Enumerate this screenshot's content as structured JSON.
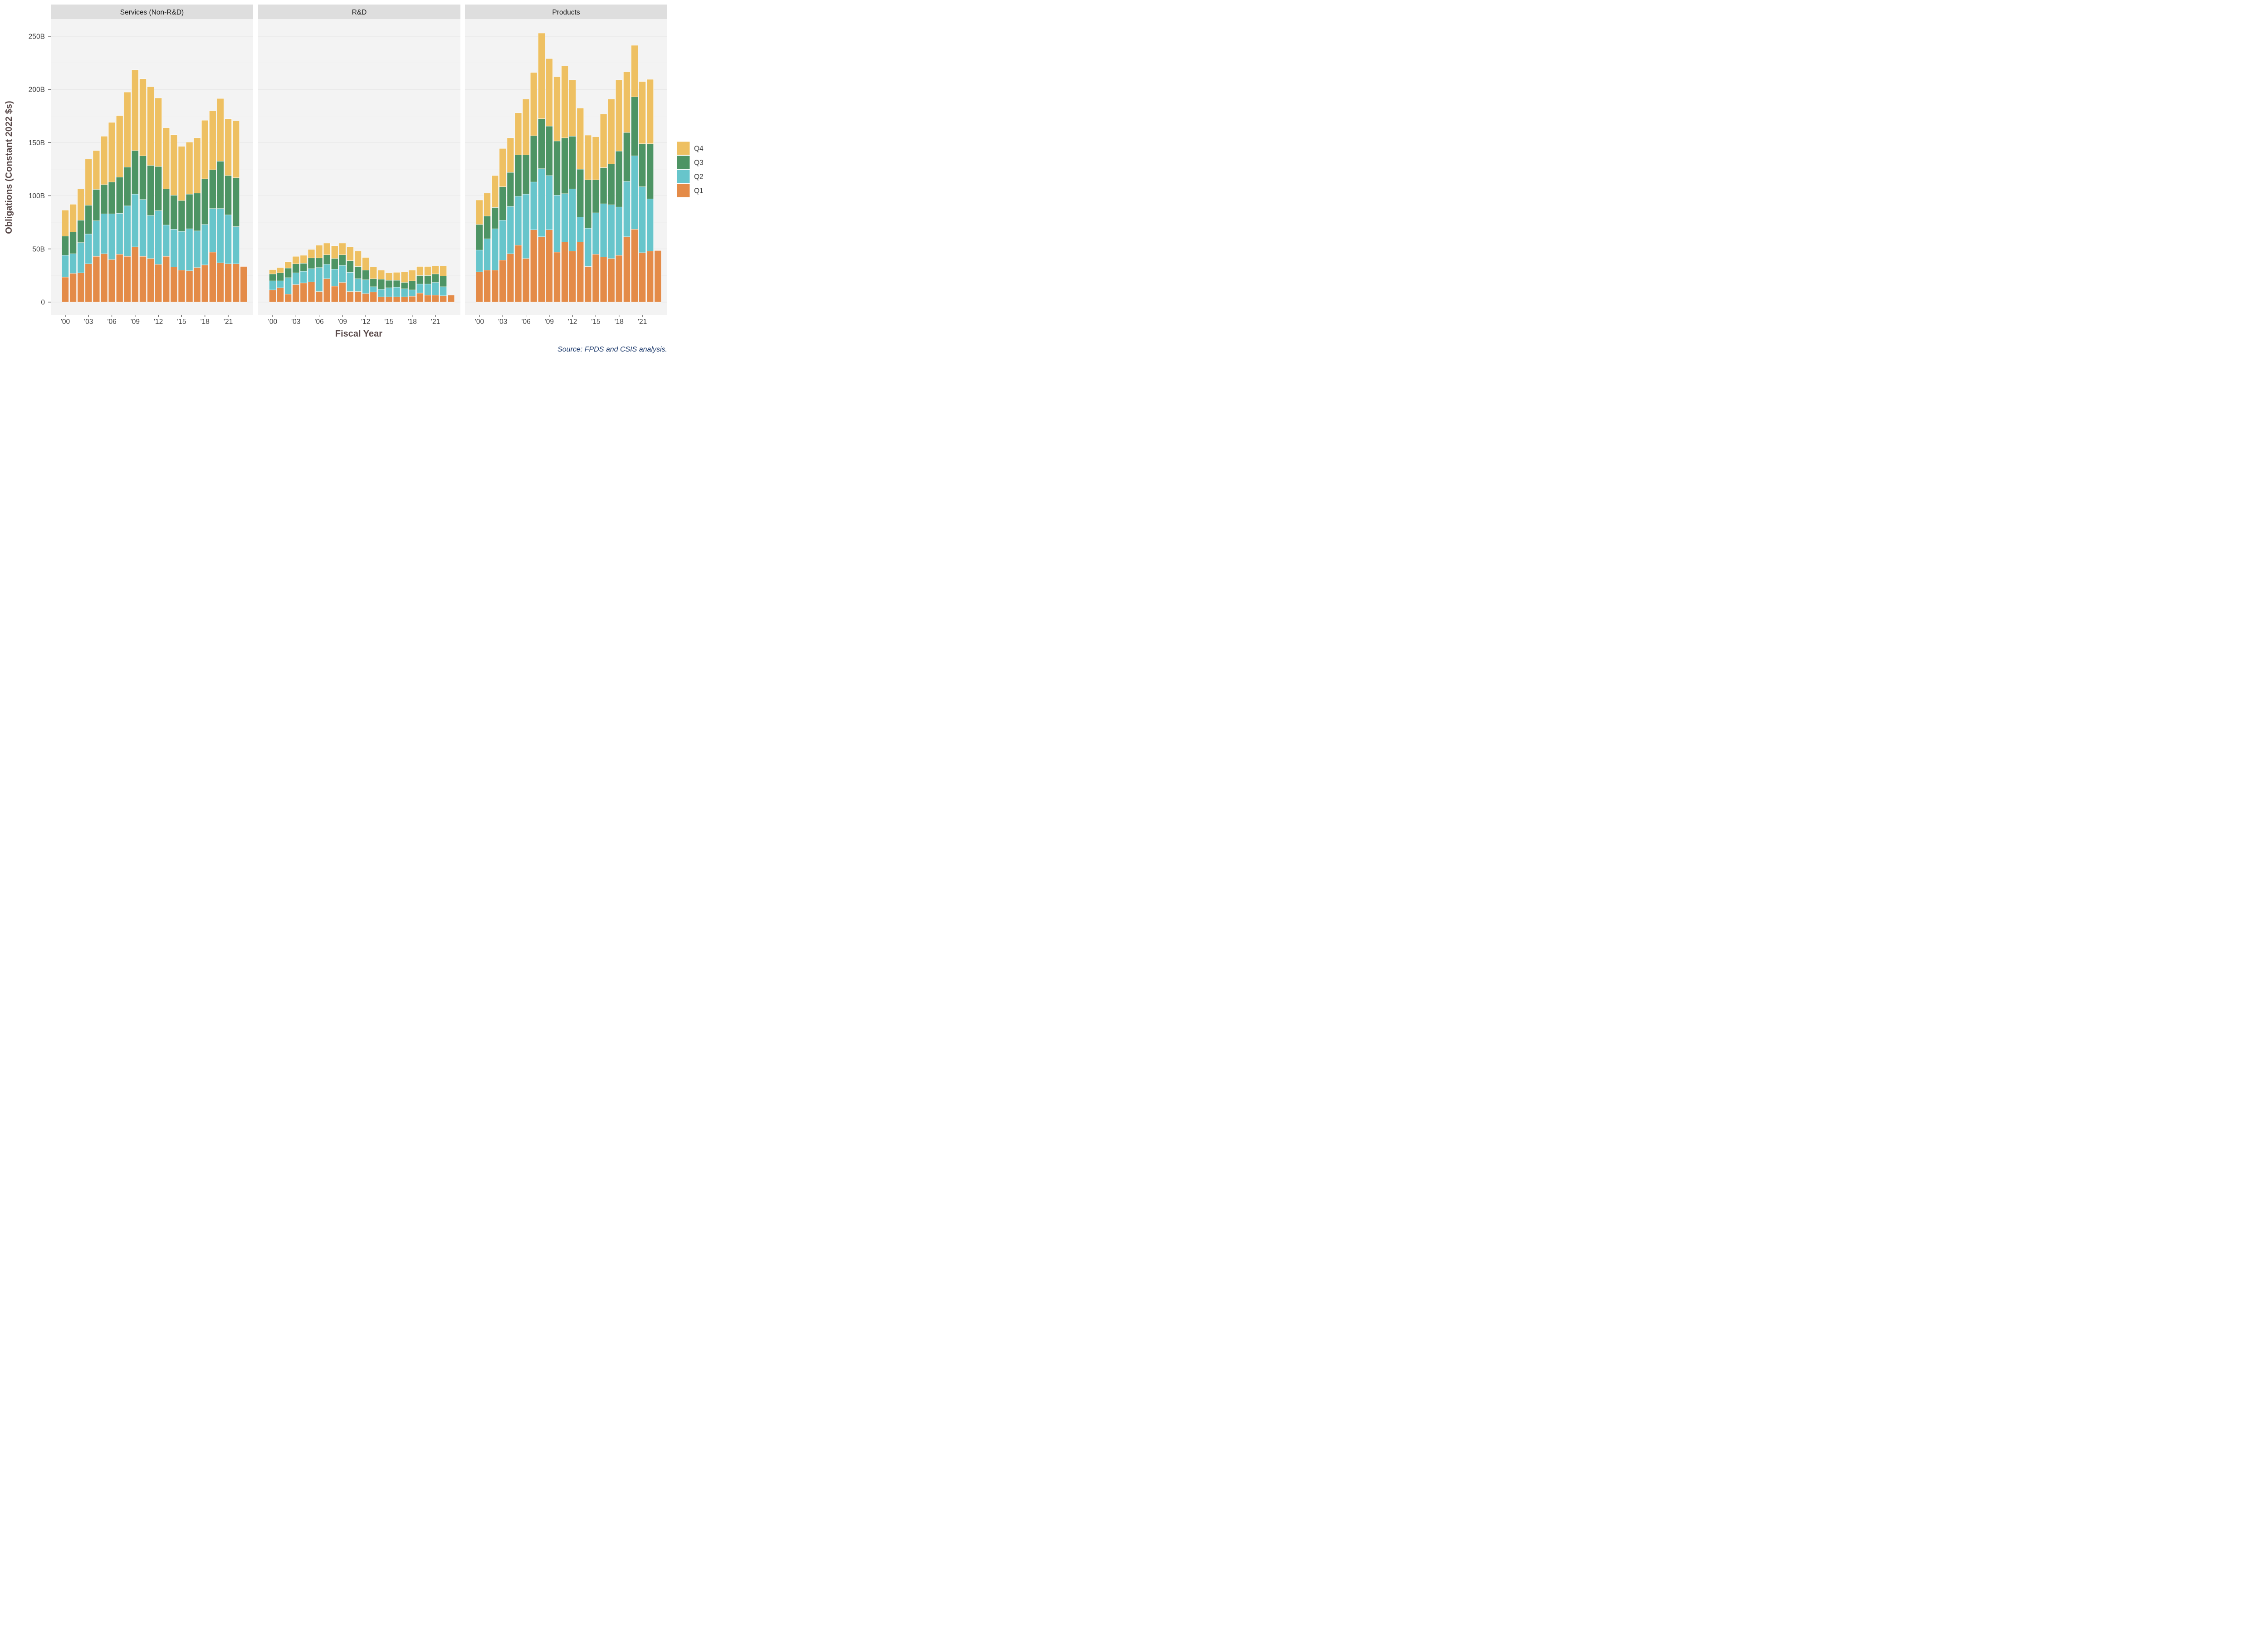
{
  "chart_data": {
    "type": "bar",
    "stacked": true,
    "xlabel": "Fiscal Year",
    "ylabel": "Obligations (Constant 2022 $s)",
    "caption": "Source: FPDS and CSIS analysis.",
    "ylim": [
      0,
      265
    ],
    "y_ticks": [
      0,
      50,
      100,
      150,
      200,
      250
    ],
    "y_tick_labels": [
      "0",
      "50B",
      "100B",
      "150B",
      "200B",
      "250B"
    ],
    "x_years": [
      2000,
      2001,
      2002,
      2003,
      2004,
      2005,
      2006,
      2007,
      2008,
      2009,
      2010,
      2011,
      2012,
      2013,
      2014,
      2015,
      2016,
      2017,
      2018,
      2019,
      2020,
      2021,
      2022,
      2023
    ],
    "x_ticks": [
      2000,
      2003,
      2006,
      2009,
      2012,
      2015,
      2018,
      2021
    ],
    "x_tick_labels": [
      "'00",
      "'03",
      "'06",
      "'09",
      "'12",
      "'15",
      "'18",
      "'21"
    ],
    "grid": true,
    "legend_position": "right",
    "legend_order": [
      "Q4",
      "Q3",
      "Q2",
      "Q1"
    ],
    "series_colors": {
      "Q1": "#e48b48",
      "Q2": "#67c5cb",
      "Q3": "#4d9464",
      "Q4": "#eec062"
    },
    "panels": [
      {
        "title": "Services (Non-R&D)",
        "series": [
          {
            "name": "Q1",
            "values": [
              23.5,
              27,
              27.5,
              36,
              43,
              45.5,
              40,
              45,
              43,
              52,
              43,
              41,
              35.5,
              43,
              33,
              30,
              29.5,
              32.5,
              35,
              47,
              37,
              36,
              36,
              33.5
            ]
          },
          {
            "name": "Q2",
            "values": [
              20.5,
              18.5,
              28.5,
              28,
              33.5,
              37.5,
              43,
              38.5,
              47.5,
              49.5,
              53.5,
              40.5,
              50.5,
              29.5,
              35.5,
              36.5,
              39.5,
              34.5,
              38,
              41,
              51,
              46,
              35,
              0
            ]
          },
          {
            "name": "Q3",
            "values": [
              18,
              20.5,
              21,
              27,
              29.5,
              27.5,
              30,
              34,
              36.5,
              41,
              41,
              47,
              41.5,
              34,
              32,
              29,
              32.5,
              35.5,
              43,
              36.5,
              44.5,
              37,
              46,
              0
            ]
          },
          {
            "name": "Q4",
            "values": [
              24.5,
              26,
              29.5,
              43.5,
              36.5,
              45.5,
              56,
              58,
              70.5,
              76,
              72.5,
              74,
              64.5,
              57.5,
              57,
              51,
              49,
              52,
              55,
              55.5,
              59,
              53.5,
              53.5,
              0
            ]
          }
        ]
      },
      {
        "title": "R&D",
        "series": [
          {
            "name": "Q1",
            "values": [
              11.5,
              13.5,
              7.5,
              16.5,
              18,
              19,
              10,
              22,
              15,
              18.5,
              10,
              10,
              8,
              9.5,
              5,
              5,
              5,
              5,
              5.5,
              8.5,
              6.5,
              6.5,
              6,
              6.5
            ]
          },
          {
            "name": "Q2",
            "values": [
              8.5,
              6.5,
              15.5,
              11,
              11,
              12.5,
              22.5,
              13.5,
              16,
              16,
              18,
              12,
              13,
              5,
              7,
              8.5,
              9,
              7.5,
              6,
              8.5,
              10.5,
              12,
              8.5,
              0
            ]
          },
          {
            "name": "Q3",
            "values": [
              6.5,
              7.5,
              9,
              8.5,
              7.5,
              10,
              9,
              9,
              10,
              10,
              11,
              11.5,
              9,
              7.5,
              9.5,
              7,
              6.5,
              6,
              8.5,
              8,
              8,
              8,
              10,
              0
            ]
          },
          {
            "name": "Q4",
            "values": [
              4,
              5,
              6,
              7,
              7.5,
              8,
              12,
              11,
              12,
              11,
              13,
              14.5,
              12,
              11,
              8.5,
              7,
              7.5,
              10,
              10,
              8.5,
              8.5,
              7.5,
              9.5,
              0
            ]
          }
        ]
      },
      {
        "title": "Products",
        "series": [
          {
            "name": "Q1",
            "values": [
              28.5,
              30,
              30,
              39.5,
              45.5,
              53.5,
              41,
              68,
              61.5,
              68,
              47,
              56.5,
              48,
              56.5,
              33.5,
              45,
              42.5,
              41,
              44,
              61.5,
              68.5,
              46.5,
              48,
              48.5
            ]
          },
          {
            "name": "Q2",
            "values": [
              20.5,
              29.5,
              39,
              37.5,
              44.5,
              46,
              60.5,
              45,
              64,
              51,
              53.5,
              45.5,
              58.5,
              23.5,
              36,
              39,
              50,
              50.5,
              45.5,
              52,
              69,
              62,
              49,
              0
            ]
          },
          {
            "name": "Q3",
            "values": [
              24,
              21.5,
              20,
              31.5,
              32,
              39,
              37,
              43.5,
              47,
              46.5,
              51,
              52.5,
              49.5,
              45,
              45.5,
              31,
              34,
              38.5,
              52.5,
              46,
              55.5,
              40.5,
              52,
              0
            ]
          },
          {
            "name": "Q4",
            "values": [
              23,
              21.5,
              30,
              36,
              32.5,
              39.5,
              52.5,
              59.5,
              80.5,
              63.5,
              60.5,
              67.5,
              53,
              57.5,
              42,
              40.5,
              50.5,
              61,
              67,
              57,
              48.5,
              58.5,
              60.5,
              0
            ]
          }
        ]
      }
    ]
  }
}
